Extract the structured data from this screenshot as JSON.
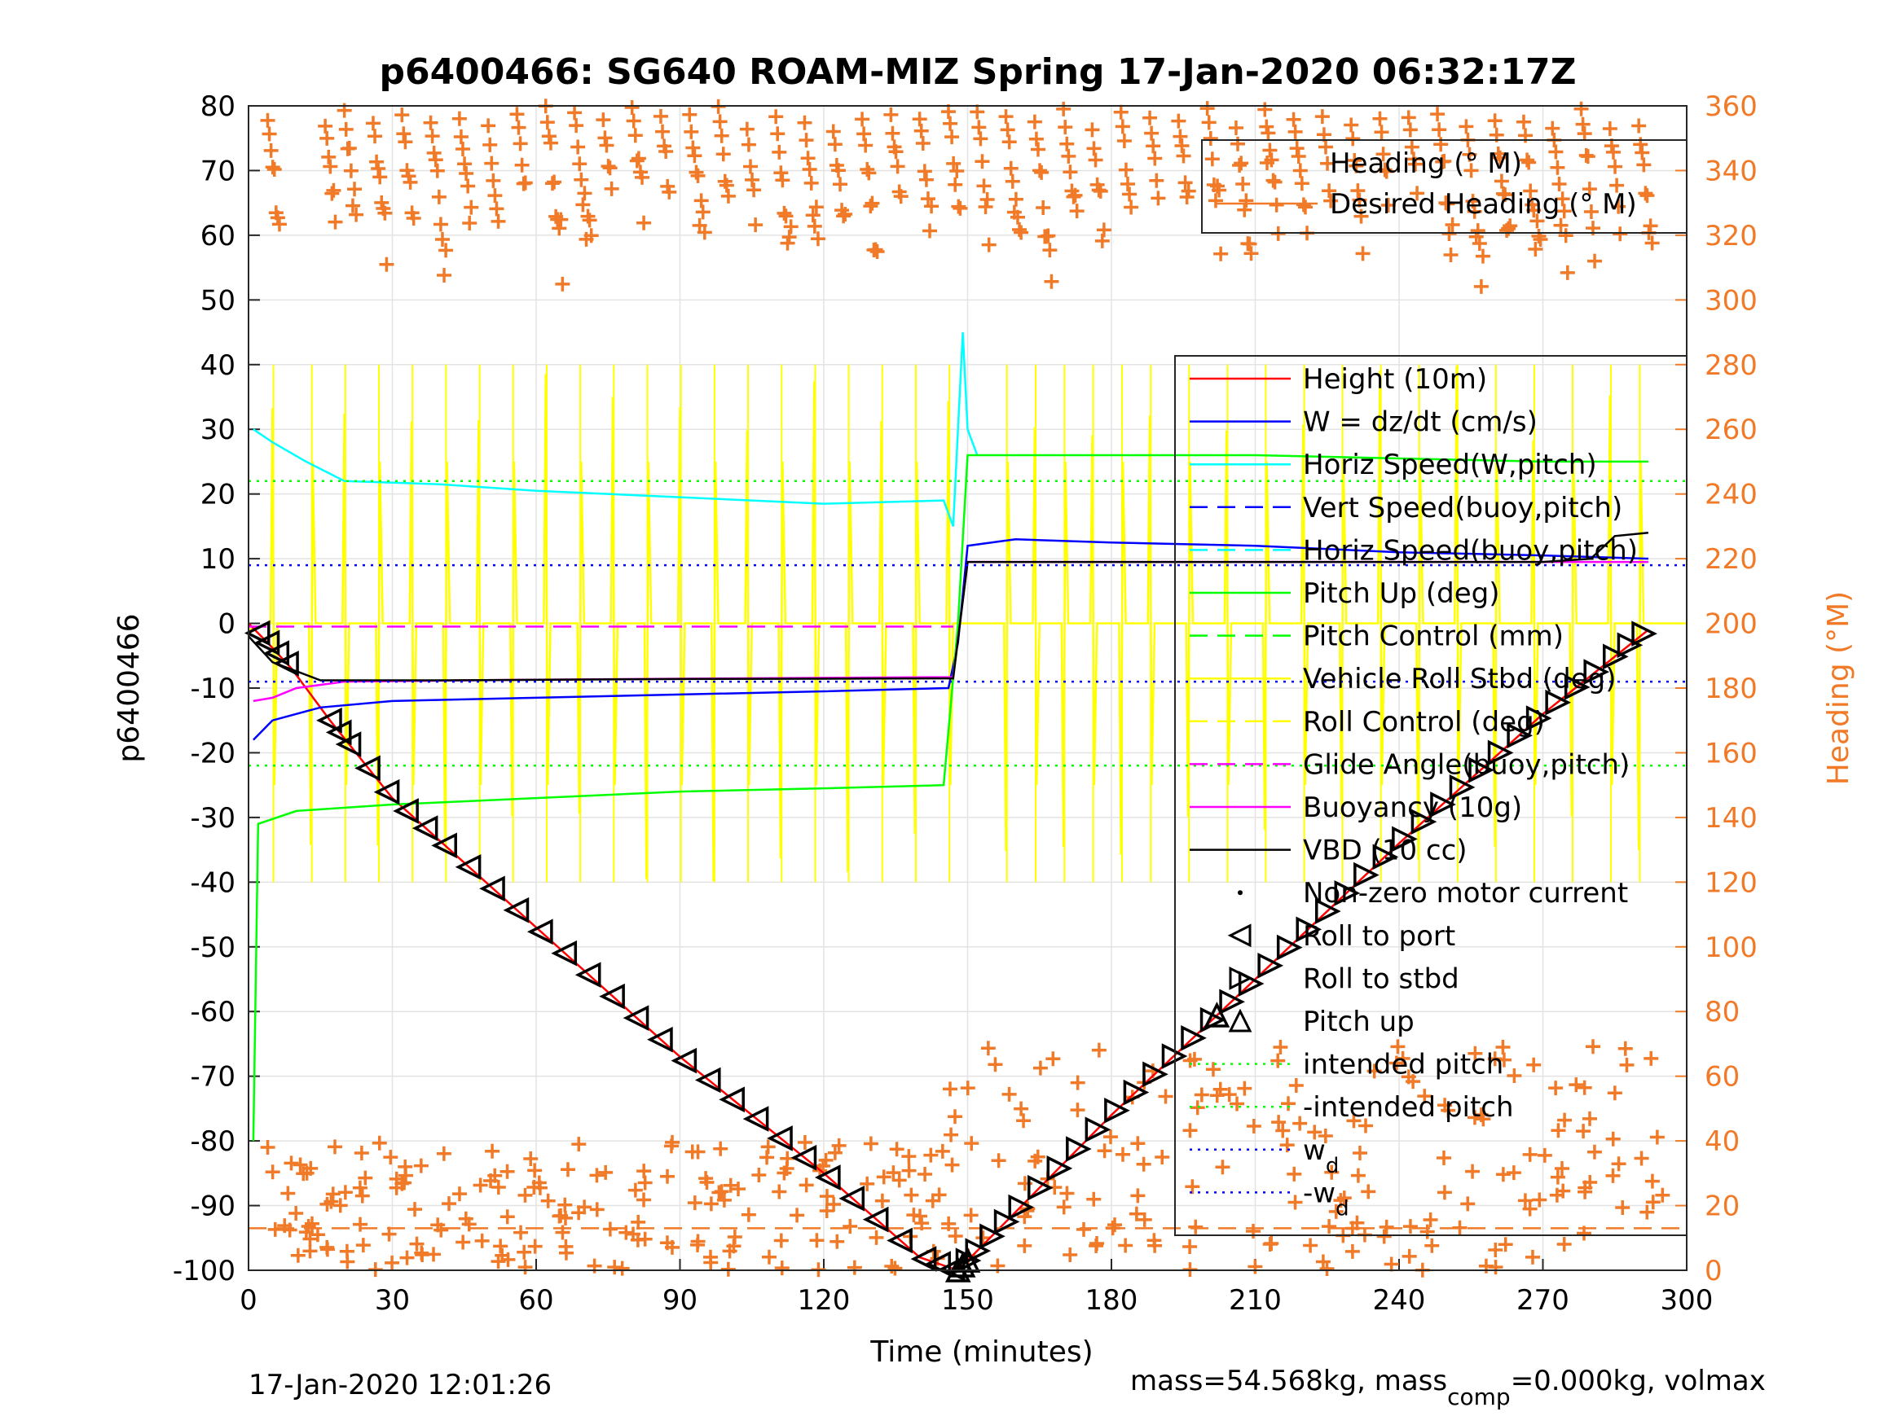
{
  "chart_data": {
    "type": "line",
    "title": "p6400466: SG640 ROAM-MIZ Spring 17-Jan-2020 06:32:17Z",
    "xlabel": "Time (minutes)",
    "ylabel": "p6400466",
    "ylabel_right": "Heading (°M)",
    "xlim": [
      0,
      300
    ],
    "ylim": [
      -100,
      80
    ],
    "ylim_right": [
      0,
      360
    ],
    "xticks": [
      "0",
      "30",
      "60",
      "90",
      "120",
      "150",
      "180",
      "210",
      "240",
      "270",
      "300"
    ],
    "yticks": [
      "80",
      "70",
      "60",
      "50",
      "40",
      "30",
      "20",
      "10",
      "0",
      "-10",
      "-20",
      "-30",
      "-40",
      "-50",
      "-60",
      "-70",
      "-80",
      "-90",
      "-100"
    ],
    "yticks_right": [
      "360",
      "340",
      "320",
      "300",
      "280",
      "260",
      "240",
      "220",
      "200",
      "180",
      "160",
      "140",
      "120",
      "100",
      "80",
      "60",
      "40",
      "20",
      "0"
    ],
    "grid": true,
    "footer_left": "17-Jan-2020 12:01:26",
    "footer_right_main": "mass=54.568kg, mass",
    "footer_right_sub": "comp",
    "footer_right_tail": "=0.000kg, volmax",
    "legend_top": {
      "placement": "top-right",
      "entries": [
        {
          "label": "Heading (° M)",
          "color": "#f07a28",
          "style": "plus"
        },
        {
          "label": "Desired Heading (° M)",
          "color": "#f07a28",
          "style": "line"
        }
      ]
    },
    "legend_main": {
      "placement": "right",
      "entries": [
        {
          "label": "Height (10m)",
          "color": "#ff0000",
          "style": "solid"
        },
        {
          "label": "W = dz/dt (cm/s)",
          "color": "#0000ff",
          "style": "solid"
        },
        {
          "label": "Horiz Speed(W,pitch)",
          "color": "#00ffff",
          "style": "solid"
        },
        {
          "label": "Vert Speed(buoy,pitch)",
          "color": "#0000ff",
          "style": "dashed"
        },
        {
          "label": "Horiz Speed(buoy,pitch)",
          "color": "#00ffff",
          "style": "dashed"
        },
        {
          "label": "Pitch Up (deg)",
          "color": "#00ff00",
          "style": "solid"
        },
        {
          "label": "Pitch Control (mm)",
          "color": "#00ff00",
          "style": "dashed"
        },
        {
          "label": "Vehicle Roll Stbd (deg)",
          "color": "#ffff00",
          "style": "solid"
        },
        {
          "label": "Roll Control (deg)",
          "color": "#ffff00",
          "style": "dashed"
        },
        {
          "label": "Glide Angle(buoy,pitch)",
          "color": "#ff00ff",
          "style": "dashed"
        },
        {
          "label": "Buoyancy (10g)",
          "color": "#ff00ff",
          "style": "solid"
        },
        {
          "label": "VBD (10 cc)",
          "color": "#000000",
          "style": "solid"
        },
        {
          "label": "Non-zero motor current",
          "color": "#000000",
          "style": "dot"
        },
        {
          "label": "Roll to port",
          "color": "#000000",
          "style": "tri-left"
        },
        {
          "label": "Roll to stbd",
          "color": "#000000",
          "style": "tri-right"
        },
        {
          "label": "Pitch up",
          "color": "#000000",
          "style": "tri-up"
        },
        {
          "label": "intended pitch",
          "color": "#00ff00",
          "style": "dotted"
        },
        {
          "label": "-intended pitch",
          "color": "#00ff00",
          "style": "dotted"
        },
        {
          "label": "w",
          "sub": "d",
          "color": "#0000ff",
          "style": "dotted"
        },
        {
          "label": "-w",
          "sub": "d",
          "color": "#0000ff",
          "style": "dotted"
        }
      ]
    },
    "series": [
      {
        "name": "Height (10m)",
        "color": "#ff0000",
        "axis": "left",
        "points": [
          [
            0,
            0
          ],
          [
            4,
            -3
          ],
          [
            9,
            -7
          ],
          [
            17,
            -15
          ],
          [
            30,
            -27
          ],
          [
            60,
            -47
          ],
          [
            90,
            -67
          ],
          [
            120,
            -85
          ],
          [
            140,
            -98
          ],
          [
            148,
            -100
          ],
          [
            160,
            -91
          ],
          [
            180,
            -76
          ],
          [
            210,
            -55
          ],
          [
            240,
            -34
          ],
          [
            270,
            -14
          ],
          [
            292,
            -1
          ]
        ]
      },
      {
        "name": "W = dz/dt (cm/s)",
        "color": "#0000ff",
        "axis": "left",
        "points": [
          [
            1,
            -18
          ],
          [
            5,
            -15
          ],
          [
            15,
            -13
          ],
          [
            30,
            -12
          ],
          [
            60,
            -11.5
          ],
          [
            90,
            -11
          ],
          [
            120,
            -10.5
          ],
          [
            146,
            -10
          ],
          [
            148,
            -3
          ],
          [
            150,
            12
          ],
          [
            160,
            13
          ],
          [
            180,
            12.5
          ],
          [
            210,
            12
          ],
          [
            240,
            11
          ],
          [
            270,
            10.5
          ],
          [
            292,
            10
          ]
        ]
      },
      {
        "name": "Horiz Speed(W,pitch)",
        "color": "#00ffff",
        "axis": "left",
        "points": [
          [
            1,
            30
          ],
          [
            5,
            28
          ],
          [
            12,
            25
          ],
          [
            20,
            22
          ],
          [
            40,
            21.5
          ],
          [
            60,
            20.5
          ],
          [
            90,
            19.5
          ],
          [
            120,
            18.5
          ],
          [
            145,
            19
          ],
          [
            147,
            15
          ],
          [
            149,
            45
          ],
          [
            150,
            30
          ],
          [
            152,
            26
          ]
        ]
      },
      {
        "name": "Pitch Up (deg)",
        "color": "#00ff00",
        "axis": "left",
        "points": [
          [
            1,
            -80
          ],
          [
            2,
            -31
          ],
          [
            10,
            -29
          ],
          [
            30,
            -28
          ],
          [
            60,
            -27
          ],
          [
            90,
            -26
          ],
          [
            120,
            -25.5
          ],
          [
            145,
            -25
          ],
          [
            148,
            0
          ],
          [
            150,
            26
          ],
          [
            180,
            26
          ],
          [
            210,
            26
          ],
          [
            240,
            25.5
          ],
          [
            270,
            25
          ],
          [
            292,
            25
          ]
        ]
      },
      {
        "name": "Buoyancy (10g)",
        "color": "#ff00ff",
        "axis": "left",
        "points": [
          [
            1,
            -12
          ],
          [
            5,
            -11.5
          ],
          [
            10,
            -10
          ],
          [
            20,
            -9
          ],
          [
            60,
            -8.7
          ],
          [
            100,
            -8.5
          ],
          [
            147,
            -8.3
          ],
          [
            150,
            9.5
          ],
          [
            292,
            9.5
          ]
        ]
      },
      {
        "name": "VBD (10 cc)",
        "color": "#000000",
        "axis": "left",
        "points": [
          [
            0,
            -2
          ],
          [
            5,
            -6
          ],
          [
            15,
            -8.8
          ],
          [
            40,
            -8.8
          ],
          [
            90,
            -8.6
          ],
          [
            147,
            -8.5
          ],
          [
            150,
            9.5
          ],
          [
            200,
            9.5
          ],
          [
            270,
            9.5
          ],
          [
            280,
            10
          ],
          [
            285,
            13.5
          ],
          [
            292,
            14
          ]
        ]
      },
      {
        "name": "Glide Angle(buoy,pitch)",
        "color": "#ff00ff",
        "axis": "left",
        "points": [
          [
            0,
            -0.5
          ],
          [
            147,
            -0.5
          ]
        ]
      },
      {
        "name": "intended pitch",
        "color": "#00ff00",
        "axis": "left",
        "points": [
          [
            0,
            22
          ],
          [
            300,
            22
          ]
        ]
      },
      {
        "name": "-intended pitch",
        "color": "#00ff00",
        "axis": "left",
        "points": [
          [
            0,
            -22
          ],
          [
            300,
            -22
          ]
        ]
      },
      {
        "name": "w",
        "color": "#0000ff",
        "axis": "left",
        "points": [
          [
            0,
            9
          ],
          [
            300,
            9
          ]
        ]
      },
      {
        "name": "-w",
        "color": "#0000ff",
        "axis": "left",
        "points": [
          [
            0,
            -9
          ],
          [
            300,
            -9
          ]
        ]
      },
      {
        "name": "Desired Heading (° M)",
        "color": "#f07a28",
        "axis": "right",
        "points": [
          [
            0,
            13
          ],
          [
            300,
            13
          ]
        ]
      },
      {
        "name": "Vehicle Roll Stbd (deg)",
        "color": "#ffff00",
        "axis": "left",
        "spike_times": [
          5,
          13,
          20,
          27,
          34,
          41,
          48,
          55,
          62,
          69,
          76,
          83,
          90,
          97,
          104,
          111,
          118,
          125,
          132,
          139,
          146,
          158,
          164,
          170,
          176,
          182,
          188,
          196,
          204,
          212,
          220,
          228,
          236,
          244,
          252,
          260,
          268,
          276,
          284,
          290
        ],
        "spike_range": [
          -40,
          40
        ],
        "baseline": [
          -1,
          0
        ]
      }
    ],
    "markers": {
      "roll_to_port_times": [
        2,
        4,
        6,
        8,
        17,
        19,
        21,
        25,
        29,
        33,
        37,
        41,
        46,
        51,
        56,
        61,
        66,
        71,
        76,
        81,
        86,
        91,
        96,
        101,
        106,
        111,
        116,
        121,
        126,
        131,
        136,
        141,
        144,
        147
      ],
      "roll_to_stbd_times": [
        150,
        152,
        155,
        158,
        161,
        165,
        169,
        173,
        177,
        181,
        185,
        189,
        193,
        197,
        201,
        205,
        209,
        213,
        217,
        221,
        225,
        229,
        233,
        237,
        241,
        245,
        249,
        253,
        257,
        261,
        265,
        269,
        273,
        277,
        281,
        285,
        288,
        291
      ],
      "pitch_up_times": [
        148,
        149,
        150,
        202
      ]
    },
    "heading_clusters": {
      "top_times": [
        4,
        16,
        20,
        26,
        32,
        38,
        44,
        50,
        56,
        62,
        68,
        74,
        80,
        86,
        92,
        98,
        104,
        110,
        116,
        122,
        128,
        134,
        140,
        146,
        152,
        158,
        164,
        170,
        176,
        182,
        188,
        194,
        200,
        206,
        212,
        218,
        224,
        230,
        236,
        242,
        248,
        254,
        260,
        266,
        272,
        278,
        284,
        290
      ],
      "top_range": [
        300,
        360
      ],
      "bottom_times": [
        4,
        8,
        12,
        16,
        20,
        26,
        32,
        38,
        44,
        50,
        56,
        62,
        68,
        74,
        80,
        86,
        92,
        98,
        104,
        110,
        116,
        122,
        128,
        134,
        140,
        146,
        152,
        158,
        164,
        170,
        176,
        182,
        188,
        194,
        200,
        206,
        212,
        218,
        224,
        230,
        236,
        242,
        248,
        254,
        260,
        266,
        272,
        278,
        284,
        290
      ],
      "bottom_range": [
        0,
        70
      ]
    }
  }
}
